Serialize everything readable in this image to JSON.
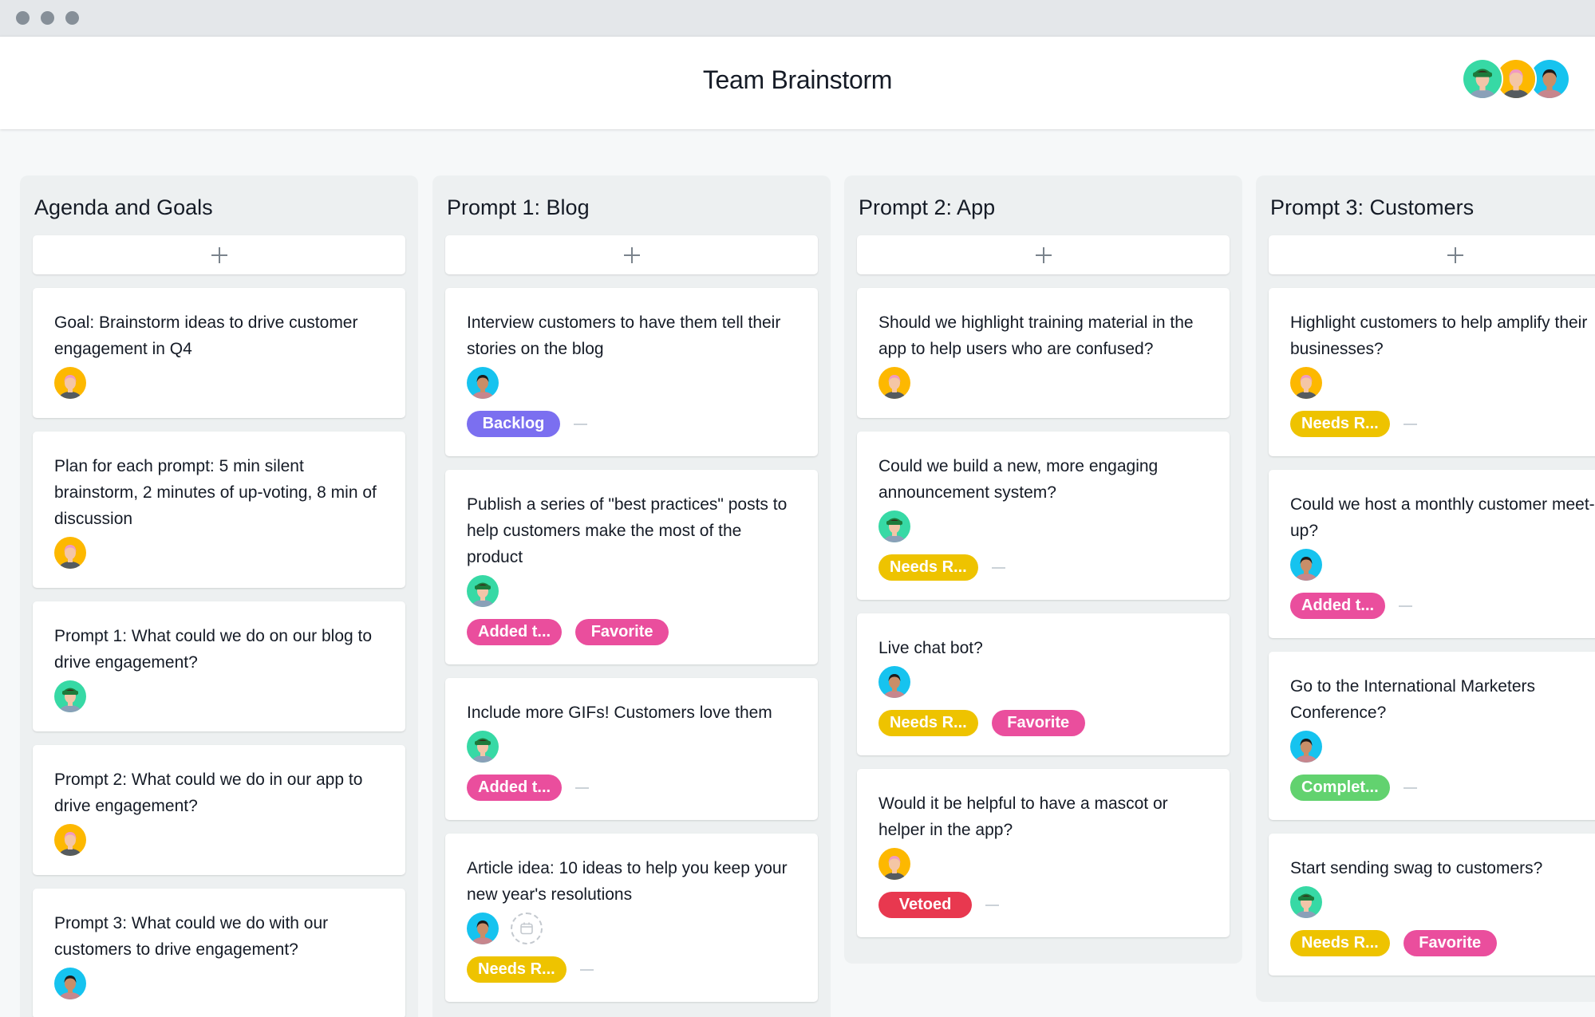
{
  "window": {
    "controls": [
      "close",
      "minimize",
      "maximize"
    ]
  },
  "header": {
    "title": "Team Brainstorm",
    "members": [
      {
        "name": "member-1",
        "bg": "#37d9a5",
        "hair": "#3a2417",
        "hat": "#1d7a3b",
        "skin": "#f2c5a8",
        "shirt": "#8aa0b8"
      },
      {
        "name": "member-2",
        "bg": "#fdb800",
        "hair": "#f09ac0",
        "hat": null,
        "skin": "#f4c6a6",
        "shirt": "#555b5f"
      },
      {
        "name": "member-3",
        "bg": "#16c3ef",
        "hair": "#1b1b1b",
        "hat": null,
        "skin": "#c98e68",
        "shirt": "#c7868d"
      }
    ]
  },
  "colors": {
    "purple": "#7b6ff0",
    "pink": "#ea4e9d",
    "yellow": "#eec300",
    "green": "#62d26f",
    "red": "#e8384f"
  },
  "columns": [
    {
      "title": "Agenda and Goals",
      "add_label": "+",
      "cards": [
        {
          "text": "Goal: Brainstorm ideas to drive customer engagement in Q4",
          "assignee": 1,
          "tags": []
        },
        {
          "text": "Plan for each prompt: 5 min silent brainstorm, 2 minutes of up-voting, 8 min of discussion",
          "assignee": 1,
          "tags": []
        },
        {
          "text": "Prompt 1: What could we do on our blog to drive engagement?",
          "assignee": 0,
          "tags": []
        },
        {
          "text": "Prompt 2: What could we do in our app to drive engagement?",
          "assignee": 1,
          "tags": []
        },
        {
          "text": "Prompt 3: What could we do with our customers to drive engagement?",
          "assignee": 2,
          "tags": []
        }
      ]
    },
    {
      "title": "Prompt 1: Blog",
      "add_label": "+",
      "cards": [
        {
          "text": "Interview customers to have them tell their stories on the blog",
          "assignee": 2,
          "tags": [
            {
              "label": "Backlog",
              "color": "purple"
            }
          ],
          "dash": true
        },
        {
          "text": "Publish a series of \"best practices\" posts to help customers make the most of the product",
          "assignee": 0,
          "tags": [
            {
              "label": "Added t...",
              "color": "pink"
            },
            {
              "label": "Favorite",
              "color": "pink"
            }
          ]
        },
        {
          "text": "Include more GIFs! Customers love them",
          "assignee": 0,
          "tags": [
            {
              "label": "Added t...",
              "color": "pink"
            }
          ],
          "dash": true
        },
        {
          "text": "Article idea: 10 ideas to help you keep your new year's resolutions",
          "assignee": 2,
          "due_date_icon": "calendar-icon",
          "tags": [
            {
              "label": "Needs R...",
              "color": "yellow"
            }
          ],
          "dash": true
        }
      ]
    },
    {
      "title": "Prompt 2: App",
      "add_label": "+",
      "cards": [
        {
          "text": "Should we highlight training material in the app to help users who are confused?",
          "assignee": 1,
          "tags": []
        },
        {
          "text": "Could we build a new, more engaging announcement system?",
          "assignee": 0,
          "tags": [
            {
              "label": "Needs R...",
              "color": "yellow"
            }
          ],
          "dash": true
        },
        {
          "text": "Live chat bot?",
          "assignee": 2,
          "tags": [
            {
              "label": "Needs R...",
              "color": "yellow"
            },
            {
              "label": "Favorite",
              "color": "pink"
            }
          ]
        },
        {
          "text": "Would it be helpful to have a mascot or helper in the app?",
          "assignee": 1,
          "tags": [
            {
              "label": "Vetoed",
              "color": "red"
            }
          ],
          "dash": true
        }
      ]
    },
    {
      "title": "Prompt 3: Customers",
      "add_label": "+",
      "cards": [
        {
          "text": "Highlight customers to help amplify their businesses?",
          "assignee": 1,
          "tags": [
            {
              "label": "Needs R...",
              "color": "yellow"
            }
          ],
          "dash": true
        },
        {
          "text": "Could we host a monthly customer meet-up?",
          "assignee": 2,
          "tags": [
            {
              "label": "Added t...",
              "color": "pink"
            }
          ],
          "dash": true
        },
        {
          "text": "Go to the International Marketers Conference?",
          "assignee": 2,
          "tags": [
            {
              "label": "Complet...",
              "color": "green"
            }
          ],
          "dash": true
        },
        {
          "text": "Start sending swag to customers?",
          "assignee": 0,
          "tags": [
            {
              "label": "Needs R...",
              "color": "yellow"
            },
            {
              "label": "Favorite",
              "color": "pink"
            }
          ]
        }
      ]
    }
  ]
}
